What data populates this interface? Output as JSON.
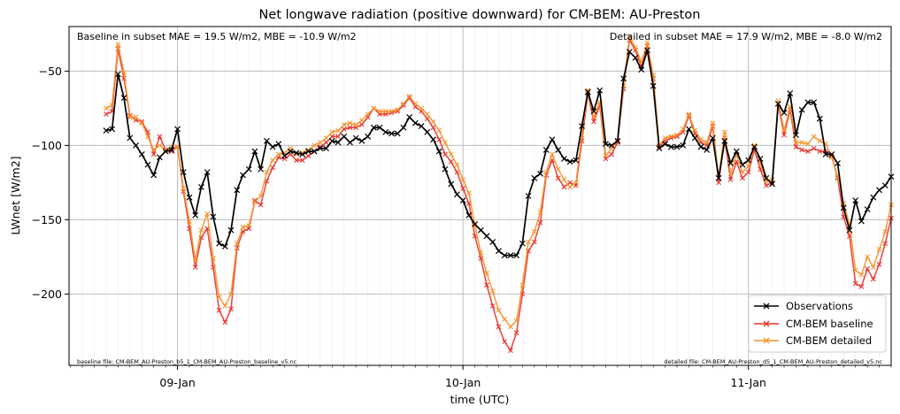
{
  "chart_data": {
    "type": "line",
    "title": "Net longwave radiation (positive downward) for CM-BEM: AU-Preston",
    "xlabel": "time (UTC)",
    "ylabel": "LWnet [W/m2]",
    "xlim": [
      -0.38,
      2.5
    ],
    "ylim": [
      -248,
      -20
    ],
    "x_ticks": [
      {
        "value": 0,
        "label": "09-Jan"
      },
      {
        "value": 1,
        "label": "10-Jan"
      },
      {
        "value": 2,
        "label": "11-Jan"
      }
    ],
    "y_ticks": [
      {
        "value": -50,
        "label": "−50"
      },
      {
        "value": -100,
        "label": "−100"
      },
      {
        "value": -150,
        "label": "−150"
      },
      {
        "value": -200,
        "label": "−200"
      }
    ],
    "grid": true,
    "legend_position": "lower-right",
    "x_start": -0.25,
    "x_step": 0.0208333,
    "annotations": {
      "baseline_stats": "Baseline in subset MAE = 19.5 W/m2, MBE = -10.9 W/m2",
      "detailed_stats": "Detailed in subset MAE = 17.9 W/m2, MBE = -8.0 W/m2",
      "baseline_file": "baseline file: CM-BEM_AU-Preston_b5_1_CM-BEM_AU-Preston_baseline_v5.nc",
      "detailed_file": "detailed file: CM-BEM_AU-Preston_d5_1_CM-BEM_AU-Preston_detailed_v5.nc"
    },
    "series": [
      {
        "name": "Observations",
        "color": "#000000",
        "values": [
          -90,
          -89,
          -52,
          -68,
          -95,
          -100,
          -106,
          -113,
          -120,
          -108,
          -104,
          -103,
          -89,
          -118,
          -135,
          -147,
          -128,
          -118,
          -148,
          -166,
          -168,
          -157,
          -130,
          -120,
          -116,
          -104,
          -116,
          -97,
          -101,
          -99,
          -107,
          -104,
          -105,
          -106,
          -104,
          -104,
          -102,
          -102,
          -97,
          -98,
          -94,
          -98,
          -95,
          -97,
          -94,
          -88,
          -88,
          -91,
          -92,
          -92,
          -88,
          -81,
          -85,
          -87,
          -91,
          -96,
          -104,
          -116,
          -126,
          -133,
          -137,
          -147,
          -153,
          -157,
          -161,
          -165,
          -171,
          -174,
          -174,
          -174,
          -166,
          -134,
          -122,
          -119,
          -103,
          -96,
          -103,
          -109,
          -111,
          -110,
          -87,
          -64,
          -77,
          -63,
          -99,
          -100,
          -97,
          -55,
          -37,
          -41,
          -49,
          -36,
          -60,
          -102,
          -99,
          -101,
          -101,
          -100,
          -89,
          -95,
          -101,
          -103,
          -95,
          -122,
          -97,
          -112,
          -104,
          -113,
          -110,
          -101,
          -109,
          -122,
          -126,
          -72,
          -78,
          -65,
          -93,
          -76,
          -71,
          -71,
          -82,
          -106,
          -106,
          -112,
          -142,
          -157,
          -137,
          -151,
          -143,
          -135,
          -130,
          -127,
          -121
        ]
      },
      {
        "name": "CM-BEM baseline",
        "color": "#e8312c",
        "values": [
          -79,
          -77,
          -35,
          -55,
          -80,
          -83,
          -84,
          -91,
          -106,
          -94,
          -103,
          -104,
          -101,
          -131,
          -156,
          -182,
          -162,
          -156,
          -182,
          -211,
          -219,
          -210,
          -169,
          -158,
          -156,
          -137,
          -140,
          -124,
          -115,
          -108,
          -109,
          -106,
          -110,
          -110,
          -107,
          -104,
          -101,
          -98,
          -94,
          -94,
          -89,
          -88,
          -88,
          -86,
          -81,
          -75,
          -79,
          -79,
          -78,
          -77,
          -73,
          -68,
          -74,
          -77,
          -82,
          -88,
          -96,
          -106,
          -111,
          -118,
          -129,
          -139,
          -161,
          -176,
          -194,
          -208,
          -222,
          -232,
          -238,
          -226,
          -200,
          -171,
          -165,
          -152,
          -120,
          -110,
          -122,
          -128,
          -125,
          -127,
          -97,
          -65,
          -84,
          -73,
          -109,
          -106,
          -98,
          -62,
          -29,
          -36,
          -47,
          -33,
          -55,
          -101,
          -97,
          -95,
          -94,
          -91,
          -80,
          -92,
          -98,
          -100,
          -87,
          -125,
          -95,
          -123,
          -111,
          -122,
          -118,
          -103,
          -116,
          -127,
          -125,
          -72,
          -93,
          -76,
          -101,
          -103,
          -104,
          -102,
          -104,
          -104,
          -107,
          -122,
          -148,
          -161,
          -193,
          -195,
          -183,
          -190,
          -180,
          -166,
          -149
        ]
      },
      {
        "name": "CM-BEM detailed",
        "color": "#f6922b",
        "values": [
          -75,
          -73,
          -32,
          -51,
          -81,
          -81,
          -85,
          -94,
          -103,
          -100,
          -103,
          -101,
          -101,
          -129,
          -151,
          -177,
          -157,
          -146,
          -176,
          -202,
          -208,
          -200,
          -166,
          -155,
          -154,
          -138,
          -134,
          -118,
          -110,
          -106,
          -105,
          -102,
          -106,
          -105,
          -103,
          -100,
          -98,
          -95,
          -91,
          -90,
          -86,
          -85,
          -86,
          -83,
          -79,
          -75,
          -77,
          -77,
          -77,
          -76,
          -72,
          -67,
          -72,
          -75,
          -79,
          -84,
          -90,
          -98,
          -106,
          -113,
          -123,
          -132,
          -154,
          -172,
          -186,
          -198,
          -211,
          -217,
          -222,
          -218,
          -194,
          -165,
          -158,
          -145,
          -118,
          -106,
          -116,
          -123,
          -128,
          -125,
          -93,
          -63,
          -81,
          -71,
          -107,
          -102,
          -97,
          -60,
          -27,
          -34,
          -44,
          -31,
          -53,
          -100,
          -95,
          -94,
          -93,
          -89,
          -79,
          -90,
          -96,
          -98,
          -85,
          -122,
          -91,
          -119,
          -106,
          -118,
          -114,
          -100,
          -112,
          -124,
          -123,
          -70,
          -90,
          -74,
          -98,
          -98,
          -99,
          -94,
          -97,
          -99,
          -108,
          -121,
          -139,
          -153,
          -184,
          -187,
          -175,
          -182,
          -170,
          -158,
          -140
        ]
      }
    ]
  }
}
